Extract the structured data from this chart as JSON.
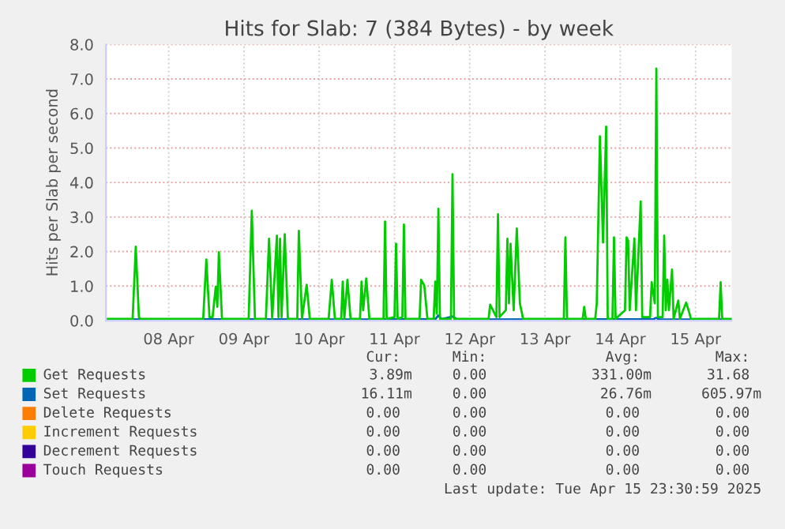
{
  "chart_data": {
    "type": "line",
    "title": "Hits for Slab: 7 (384 Bytes) - by week",
    "ylabel": "Hits per Slab per second",
    "xlim": [
      "2025-04-07T16:00",
      "2025-04-15T23:30"
    ],
    "xticks": [
      {
        "value": "2025-04-08T12:00",
        "label": "08 Apr"
      },
      {
        "value": "2025-04-09T12:00",
        "label": "09 Apr"
      },
      {
        "value": "2025-04-10T12:00",
        "label": "10 Apr"
      },
      {
        "value": "2025-04-11T12:00",
        "label": "11 Apr"
      },
      {
        "value": "2025-04-12T12:00",
        "label": "12 Apr"
      },
      {
        "value": "2025-04-13T12:00",
        "label": "13 Apr"
      },
      {
        "value": "2025-04-14T12:00",
        "label": "14 Apr"
      },
      {
        "value": "2025-04-15T12:00",
        "label": "15 Apr"
      }
    ],
    "ylim": [
      0,
      8.0
    ],
    "yticks": [
      {
        "value": 0,
        "label": "0.0"
      },
      {
        "value": 1,
        "label": "1.0"
      },
      {
        "value": 2,
        "label": "2.0"
      },
      {
        "value": 3,
        "label": "3.0"
      },
      {
        "value": 4,
        "label": "4.0"
      },
      {
        "value": 5,
        "label": "5.0"
      },
      {
        "value": 6,
        "label": "6.0"
      },
      {
        "value": 7,
        "label": "7.0"
      },
      {
        "value": 8,
        "label": "8.0"
      }
    ],
    "grid": true,
    "legend": "bottom",
    "series": [
      {
        "name": "Delete Requests",
        "color": "#ff7d00"
      },
      {
        "name": "Increment Requests",
        "color": "#ffcc00"
      },
      {
        "name": "Decrement Requests",
        "color": "#330099"
      },
      {
        "name": "Touch Requests",
        "color": "#990099"
      },
      {
        "name": "Set Requests",
        "color": "#0066b3",
        "x": [
          "2025-04-07T16:00",
          "2025-04-09T12:00",
          "2025-04-11T00:00",
          "2025-04-12T01:00",
          "2025-04-12T02:00",
          "2025-04-12T03:00",
          "2025-04-12T06:30",
          "2025-04-12T08:00",
          "2025-04-14T22:30",
          "2025-04-14T23:30",
          "2025-04-15T00:30",
          "2025-04-15T23:30"
        ],
        "values": [
          0.03,
          0.04,
          0.03,
          0.04,
          0.15,
          0.04,
          0.12,
          0.03,
          0.04,
          0.08,
          0.03,
          0.03
        ]
      },
      {
        "name": "Get Requests",
        "color": "#00cc00",
        "x": [
          "2025-04-07T16:00",
          "2025-04-08T00:30",
          "2025-04-08T01:30",
          "2025-04-08T02:30",
          "2025-04-08T03:00",
          "2025-04-08T23:00",
          "2025-04-09T00:00",
          "2025-04-09T01:00",
          "2025-04-09T02:00",
          "2025-04-09T03:00",
          "2025-04-09T03:30",
          "2025-04-09T04:00",
          "2025-04-09T05:00",
          "2025-04-09T13:30",
          "2025-04-09T14:30",
          "2025-04-09T15:30",
          "2025-04-09T19:00",
          "2025-04-09T20:00",
          "2025-04-09T21:00",
          "2025-04-09T22:30",
          "2025-04-09T23:00",
          "2025-04-09T23:30",
          "2025-04-10T00:00",
          "2025-04-10T01:00",
          "2025-04-10T02:00",
          "2025-04-10T05:00",
          "2025-04-10T05:30",
          "2025-04-10T06:30",
          "2025-04-10T08:00",
          "2025-04-10T09:00",
          "2025-04-10T15:00",
          "2025-04-10T16:00",
          "2025-04-10T17:00",
          "2025-04-10T19:00",
          "2025-04-10T19:30",
          "2025-04-10T20:00",
          "2025-04-10T21:00",
          "2025-04-10T22:00",
          "2025-04-11T01:00",
          "2025-04-11T01:30",
          "2025-04-11T02:00",
          "2025-04-11T03:00",
          "2025-04-11T04:00",
          "2025-04-11T08:30",
          "2025-04-11T09:00",
          "2025-04-11T09:30",
          "2025-04-11T12:00",
          "2025-04-11T12:30",
          "2025-04-11T13:00",
          "2025-04-11T14:30",
          "2025-04-11T15:00",
          "2025-04-11T15:30",
          "2025-04-11T20:00",
          "2025-04-11T20:30",
          "2025-04-11T21:30",
          "2025-04-11T22:30",
          "2025-04-12T00:30",
          "2025-04-12T01:00",
          "2025-04-12T01:30",
          "2025-04-12T02:00",
          "2025-04-12T02:30",
          "2025-04-12T06:00",
          "2025-04-12T06:30",
          "2025-04-12T07:00",
          "2025-04-12T18:00",
          "2025-04-12T18:30",
          "2025-04-12T20:30",
          "2025-04-12T21:00",
          "2025-04-12T21:30",
          "2025-04-12T23:30",
          "2025-04-13T00:00",
          "2025-04-13T00:30",
          "2025-04-13T01:00",
          "2025-04-13T02:00",
          "2025-04-13T03:00",
          "2025-04-13T04:00",
          "2025-04-13T05:00",
          "2025-04-13T18:00",
          "2025-04-13T18:30",
          "2025-04-13T19:00",
          "2025-04-14T00:00",
          "2025-04-14T00:30",
          "2025-04-14T01:00",
          "2025-04-14T04:00",
          "2025-04-14T04:30",
          "2025-04-14T05:30",
          "2025-04-14T06:30",
          "2025-04-14T07:30",
          "2025-04-14T08:00",
          "2025-04-14T09:30",
          "2025-04-14T10:00",
          "2025-04-14T10:30",
          "2025-04-14T13:30",
          "2025-04-14T14:00",
          "2025-04-14T14:30",
          "2025-04-14T15:00",
          "2025-04-14T16:30",
          "2025-04-14T17:00",
          "2025-04-14T18:30",
          "2025-04-14T19:00",
          "2025-04-14T21:30",
          "2025-04-14T22:00",
          "2025-04-14T23:00",
          "2025-04-14T23:30",
          "2025-04-15T00:00",
          "2025-04-15T01:30",
          "2025-04-15T02:00",
          "2025-04-15T02:30",
          "2025-04-15T03:00",
          "2025-04-15T03:30",
          "2025-04-15T04:30",
          "2025-04-15T05:00",
          "2025-04-15T06:30",
          "2025-04-15T07:00",
          "2025-04-15T09:00",
          "2025-04-15T10:00",
          "2025-04-15T10:30",
          "2025-04-15T19:30",
          "2025-04-15T20:00",
          "2025-04-15T20:30",
          "2025-04-15T23:30"
        ],
        "values": [
          0.05,
          0.05,
          2.14,
          0.1,
          0.05,
          0.05,
          1.77,
          0.1,
          0.1,
          0.98,
          0.4,
          1.98,
          0.05,
          0.05,
          3.18,
          0.05,
          0.05,
          2.37,
          0.05,
          2.46,
          0.1,
          2.37,
          0.1,
          2.5,
          0.05,
          0.05,
          2.6,
          0.05,
          1.04,
          0.05,
          0.05,
          1.18,
          0.05,
          0.05,
          1.13,
          0.05,
          1.18,
          0.05,
          0.05,
          1.13,
          0.3,
          1.22,
          0.05,
          0.05,
          2.87,
          0.05,
          0.1,
          2.23,
          0.05,
          0.1,
          2.78,
          0.05,
          0.05,
          1.18,
          1.02,
          0.05,
          0.05,
          1.13,
          0.2,
          3.24,
          0.05,
          0.05,
          4.24,
          0.05,
          0.05,
          0.46,
          0.1,
          3.08,
          0.1,
          0.3,
          2.37,
          0.5,
          2.23,
          0.3,
          2.67,
          0.49,
          0.05,
          0.05,
          2.41,
          0.05,
          0.05,
          0.4,
          0.05,
          0.05,
          0.49,
          5.34,
          2.26,
          5.62,
          0.05,
          0.05,
          2.41,
          0.05,
          0.3,
          2.41,
          2.32,
          0.3,
          2.38,
          0.3,
          3.45,
          0.1,
          0.1,
          1.11,
          0.5,
          7.3,
          0.1,
          0.1,
          2.46,
          0.3,
          1.18,
          0.3,
          1.48,
          0.05,
          0.58,
          0.05,
          0.52,
          0.23,
          0.05,
          0.05,
          1.11,
          0.05,
          0.05
        ]
      }
    ],
    "annotations": [
      "Cur:",
      "Min:",
      "Avg:",
      "Max:",
      "3.89m",
      "0.00",
      "331.00m",
      "31.68",
      "16.11m",
      "0.00",
      "26.76m",
      "605.97m",
      "0.00",
      "0.00",
      "0.00",
      "0.00",
      "0.00",
      "0.00",
      "0.00",
      "0.00",
      "0.00",
      "0.00",
      "0.00",
      "0.00",
      "0.00",
      "0.00",
      "0.00",
      "0.00",
      "Last update: Tue Apr 15 23:30:59 2025"
    ]
  }
}
